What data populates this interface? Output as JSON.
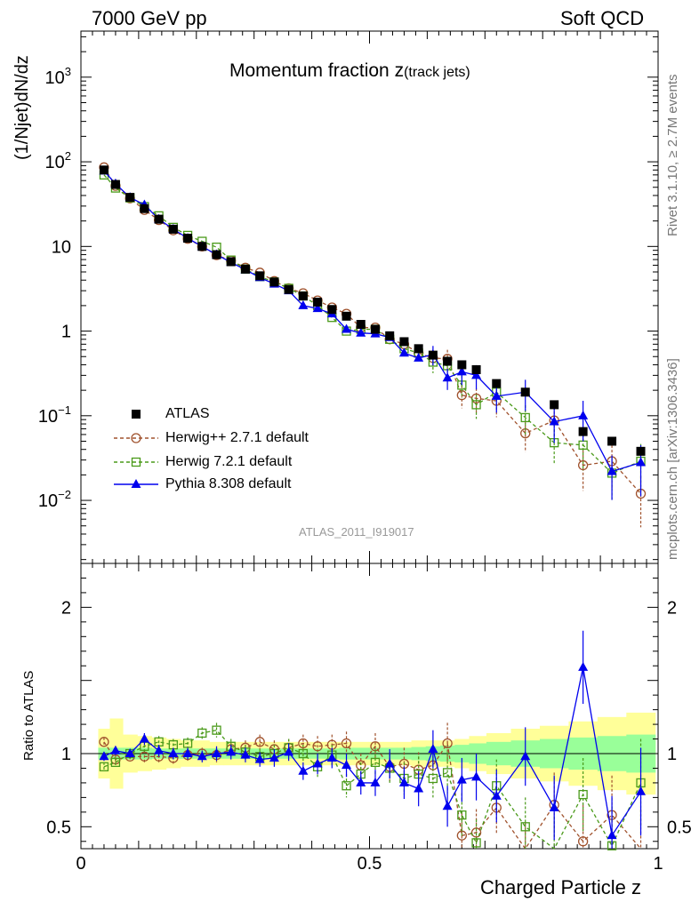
{
  "header": {
    "left": "7000 GeV pp",
    "right": "Soft QCD"
  },
  "side_notes": {
    "rivet": "Rivet 3.1.10, ≥ 2.7M events",
    "source": "mcplots.cern.ch [arXiv:1306.3436]"
  },
  "chart_data": {
    "type": "scatter",
    "title": "Momentum fraction",
    "title_var": "z",
    "title_sub": "(track jets)",
    "xlabel": "Charged Particle z",
    "ylabel": "(1/Njet)dN/dz",
    "ratio_ylabel": "Ratio to ATLAS",
    "analysis_id": "ATLAS_2011_I919017",
    "xlim": [
      0,
      1
    ],
    "ylim_log": [
      0.0018,
      3500
    ],
    "ratio_ylim": [
      0.35,
      2.3
    ],
    "x_ticks": [
      {
        "v": 0,
        "label": "0"
      },
      {
        "v": 0.5,
        "label": "0.5"
      },
      {
        "v": 1,
        "label": "1"
      }
    ],
    "y_ticks": [
      {
        "v": 0.01,
        "base": "10",
        "exp": "−2"
      },
      {
        "v": 0.1,
        "base": "10",
        "exp": "−1"
      },
      {
        "v": 1,
        "base": "1",
        "exp": ""
      },
      {
        "v": 10,
        "base": "10",
        "exp": ""
      },
      {
        "v": 100,
        "base": "10",
        "exp": "2"
      },
      {
        "v": 1000,
        "base": "10",
        "exp": "3"
      }
    ],
    "ratio_ticks": [
      {
        "v": 0.5,
        "label": "0.5"
      },
      {
        "v": 1,
        "label": "1"
      },
      {
        "v": 2,
        "label": "2"
      }
    ],
    "x": [
      0.04,
      0.06,
      0.085,
      0.11,
      0.135,
      0.16,
      0.185,
      0.21,
      0.235,
      0.26,
      0.285,
      0.31,
      0.335,
      0.36,
      0.385,
      0.41,
      0.435,
      0.46,
      0.485,
      0.51,
      0.535,
      0.56,
      0.585,
      0.61,
      0.635,
      0.66,
      0.685,
      0.72,
      0.77,
      0.82,
      0.87,
      0.92,
      0.97
    ],
    "band_outer": [
      0.17,
      0.24,
      0.13,
      0.12,
      0.11,
      0.1,
      0.09,
      0.09,
      0.08,
      0.08,
      0.08,
      0.08,
      0.08,
      0.08,
      0.08,
      0.08,
      0.08,
      0.08,
      0.08,
      0.08,
      0.08,
      0.08,
      0.09,
      0.09,
      0.09,
      0.1,
      0.12,
      0.14,
      0.17,
      0.19,
      0.22,
      0.25,
      0.28
    ],
    "band_inner": [
      0.04,
      0.04,
      0.04,
      0.04,
      0.035,
      0.035,
      0.035,
      0.035,
      0.035,
      0.035,
      0.035,
      0.035,
      0.035,
      0.035,
      0.035,
      0.035,
      0.035,
      0.04,
      0.04,
      0.04,
      0.04,
      0.04,
      0.045,
      0.05,
      0.055,
      0.06,
      0.07,
      0.08,
      0.09,
      0.1,
      0.11,
      0.12,
      0.13
    ],
    "series": [
      {
        "name": "ATLAS",
        "color": "#000000",
        "marker": "square-filled",
        "values": [
          80,
          54,
          38,
          28,
          21,
          16,
          12.5,
          10,
          8,
          6.6,
          5.4,
          4.5,
          3.8,
          3.1,
          2.6,
          2.2,
          1.8,
          1.5,
          1.2,
          1.05,
          0.88,
          0.75,
          0.62,
          0.52,
          0.44,
          0.4,
          0.35,
          0.24,
          0.19,
          0.135,
          0.065,
          0.05,
          0.038
        ],
        "ratio": []
      },
      {
        "name": "Herwig++ 2.7.1 default",
        "color": "#a0522d",
        "marker": "circle-open",
        "dashed": true,
        "values": [
          86,
          52,
          37,
          27,
          20.5,
          15.5,
          12.3,
          10,
          7.9,
          6.8,
          5.6,
          4.9,
          3.9,
          3.2,
          2.8,
          2.3,
          1.9,
          1.6,
          1.1,
          1.1,
          0.8,
          0.7,
          0.55,
          0.48,
          0.47,
          0.175,
          0.16,
          0.15,
          0.062,
          0.088,
          0.026,
          0.029,
          0.012
        ],
        "ratio": [
          1.08,
          0.96,
          0.98,
          0.98,
          0.98,
          0.97,
          0.99,
          1.0,
          0.99,
          1.03,
          1.04,
          1.08,
          1.03,
          1.04,
          1.07,
          1.05,
          1.06,
          1.07,
          0.92,
          1.05,
          0.91,
          0.93,
          0.89,
          0.92,
          1.07,
          0.44,
          0.46,
          0.63,
          0.33,
          0.65,
          0.4,
          0.58,
          0.32
        ],
        "ratio_err": [
          0.03,
          0.03,
          0.03,
          0.04,
          0.04,
          0.04,
          0.04,
          0.04,
          0.05,
          0.05,
          0.05,
          0.05,
          0.06,
          0.06,
          0.06,
          0.07,
          0.07,
          0.08,
          0.08,
          0.09,
          0.1,
          0.11,
          0.12,
          0.13,
          0.14,
          0.15,
          0.16,
          0.18,
          0.2,
          0.22,
          0.25,
          0.27,
          0.3
        ]
      },
      {
        "name": "Herwig 7.2.1 default",
        "color": "#4a9a1a",
        "marker": "square-open",
        "dashed": true,
        "values": [
          70,
          49,
          37.5,
          29.5,
          23,
          16.8,
          13.5,
          11.5,
          9.8,
          6.9,
          5.4,
          4.4,
          3.8,
          3.2,
          2.6,
          2.0,
          1.45,
          1.0,
          1.05,
          1.05,
          0.8,
          0.62,
          0.55,
          0.43,
          0.39,
          0.23,
          0.135,
          0.19,
          0.095,
          0.048,
          0.045,
          0.021,
          0.029
        ],
        "ratio": [
          0.91,
          0.94,
          1.0,
          1.05,
          1.08,
          1.06,
          1.07,
          1.14,
          1.16,
          1.05,
          1.01,
          0.98,
          1.0,
          1.04,
          1.0,
          0.91,
          0.99,
          0.78,
          0.86,
          0.94,
          0.9,
          0.83,
          0.86,
          0.83,
          0.87,
          0.58,
          0.39,
          0.78,
          0.5,
          0.35,
          0.72,
          0.37,
          0.8
        ],
        "ratio_err": [
          0.03,
          0.03,
          0.03,
          0.04,
          0.04,
          0.04,
          0.04,
          0.04,
          0.05,
          0.05,
          0.05,
          0.05,
          0.06,
          0.06,
          0.06,
          0.07,
          0.07,
          0.08,
          0.08,
          0.09,
          0.1,
          0.11,
          0.12,
          0.13,
          0.14,
          0.15,
          0.16,
          0.18,
          0.2,
          0.22,
          0.25,
          0.27,
          0.3
        ]
      },
      {
        "name": "Pythia 8.308 default",
        "color": "#0000ee",
        "marker": "triangle-filled",
        "values": [
          78,
          55,
          38,
          31,
          21,
          16,
          12.5,
          10,
          8,
          6.5,
          5.3,
          4.3,
          3.6,
          3.0,
          2.0,
          1.85,
          1.6,
          1.05,
          0.95,
          0.93,
          0.84,
          0.55,
          0.48,
          0.53,
          0.28,
          0.33,
          0.3,
          0.17,
          0.19,
          0.085,
          0.1,
          0.022,
          0.028
        ],
        "ratio": [
          0.98,
          1.02,
          1.0,
          1.1,
          1.02,
          1.0,
          1.0,
          0.98,
          1.0,
          1.01,
          0.99,
          0.96,
          0.97,
          1.01,
          0.88,
          0.93,
          0.97,
          0.92,
          0.8,
          0.8,
          0.93,
          0.8,
          0.76,
          1.03,
          0.64,
          0.82,
          0.84,
          0.71,
          0.98,
          0.63,
          1.59,
          0.44,
          0.74
        ],
        "ratio_err": [
          0.03,
          0.03,
          0.03,
          0.04,
          0.04,
          0.04,
          0.04,
          0.04,
          0.05,
          0.05,
          0.05,
          0.05,
          0.06,
          0.06,
          0.06,
          0.07,
          0.07,
          0.08,
          0.08,
          0.09,
          0.1,
          0.11,
          0.12,
          0.13,
          0.14,
          0.15,
          0.16,
          0.18,
          0.2,
          0.22,
          0.25,
          0.27,
          0.3
        ]
      }
    ]
  },
  "colors": {
    "band_outer": "#ffff99",
    "band_inner": "#99ff99"
  }
}
